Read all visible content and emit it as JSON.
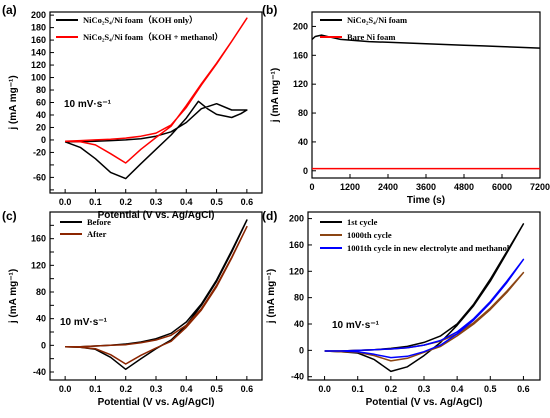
{
  "chart_data": [
    {
      "panel": "(a)",
      "type": "line",
      "xlabel": "Potential (V vs. Ag/AgCl)",
      "ylabel": "j (mA mg⁻¹)",
      "xlim": [
        -0.05,
        0.65
      ],
      "ylim": [
        -85,
        205
      ],
      "xticks": [
        0.0,
        0.1,
        0.2,
        0.3,
        0.4,
        0.5,
        0.6
      ],
      "xticklabels": [
        "0.0",
        "0.1",
        "0.2",
        "0.3",
        "0.4",
        "0.5",
        "0.6"
      ],
      "yticks": [
        -80,
        -60,
        -40,
        -20,
        0,
        20,
        40,
        60,
        80,
        100,
        120,
        140,
        160,
        180,
        200
      ],
      "yticklabels": [
        "",
        "-60",
        "",
        "-20",
        "0",
        "20",
        "40",
        "60",
        "80",
        "100",
        "120",
        "140",
        "160",
        "180",
        "200"
      ],
      "annotation": "10 mV·s⁻¹",
      "legend_position": "top-left",
      "series": [
        {
          "name": "NiCo₂S₄/Ni foam（KOH only）",
          "color": "#000000",
          "x": [
            0.0,
            0.05,
            0.1,
            0.15,
            0.2,
            0.25,
            0.3,
            0.35,
            0.4,
            0.45,
            0.5,
            0.55,
            0.6,
            0.58,
            0.55,
            0.5,
            0.47,
            0.44,
            0.4,
            0.35,
            0.3,
            0.25,
            0.2,
            0.15,
            0.1,
            0.05,
            0.0
          ],
          "y": [
            -3,
            -3,
            -2,
            -1,
            0,
            2,
            6,
            13,
            28,
            50,
            58,
            48,
            48,
            42,
            36,
            41,
            50,
            62,
            35,
            8,
            -15,
            -38,
            -62,
            -52,
            -30,
            -12,
            -3
          ]
        },
        {
          "name": "NiCo₂S₄/Ni foam（KOH + methanol）",
          "color": "#ff0000",
          "x": [
            0.0,
            0.05,
            0.1,
            0.15,
            0.2,
            0.25,
            0.3,
            0.35,
            0.4,
            0.45,
            0.5,
            0.55,
            0.6,
            0.55,
            0.5,
            0.45,
            0.4,
            0.35,
            0.3,
            0.25,
            0.2,
            0.15,
            0.1,
            0.05,
            0.0
          ],
          "y": [
            -2,
            -1,
            0,
            1,
            3,
            6,
            11,
            24,
            52,
            88,
            122,
            158,
            195,
            158,
            123,
            90,
            55,
            22,
            4,
            -15,
            -37,
            -22,
            -8,
            -3,
            -2
          ]
        }
      ]
    },
    {
      "panel": "(b)",
      "type": "line",
      "xlabel": "Time (s)",
      "ylabel": "j (mA mg⁻¹)",
      "xlim": [
        0,
        7200
      ],
      "ylim": [
        -10,
        220
      ],
      "xticks": [
        0,
        1200,
        2400,
        3600,
        4800,
        6000,
        7200
      ],
      "xticklabels": [
        "0",
        "1200",
        "2400",
        "3600",
        "4800",
        "6000",
        "7200"
      ],
      "yticks": [
        0,
        40,
        80,
        120,
        160,
        200
      ],
      "yticklabels": [
        "0",
        "40",
        "80",
        "120",
        "160",
        "200"
      ],
      "legend_position": "top-left",
      "series": [
        {
          "name": "NiCo₂S₄/Ni foam",
          "color": "#000000",
          "x": [
            0,
            100,
            300,
            600,
            900,
            1200,
            1800,
            2400,
            3000,
            3600,
            4200,
            4800,
            5400,
            6000,
            6600,
            7200
          ],
          "y": [
            182,
            186,
            188,
            185,
            182,
            181,
            179,
            178,
            177,
            176,
            175,
            174,
            173,
            172,
            171,
            170
          ]
        },
        {
          "name": "Bare Ni foam",
          "color": "#ff0000",
          "x": [
            0,
            7200
          ],
          "y": [
            3,
            3
          ]
        }
      ]
    },
    {
      "panel": "(c)",
      "type": "line",
      "xlabel": "Potential (V vs. Ag/AgCl)",
      "ylabel": "j (mA mg⁻¹)",
      "xlim": [
        -0.05,
        0.65
      ],
      "ylim": [
        -52,
        200
      ],
      "xticks": [
        0.0,
        0.1,
        0.2,
        0.3,
        0.4,
        0.5,
        0.6
      ],
      "xticklabels": [
        "0.0",
        "0.1",
        "0.2",
        "0.3",
        "0.4",
        "0.5",
        "0.6"
      ],
      "yticks": [
        -40,
        -20,
        0,
        20,
        40,
        60,
        80,
        100,
        120,
        140,
        160,
        180
      ],
      "yticklabels": [
        "-40",
        "",
        "0",
        "",
        "40",
        "",
        "80",
        "",
        "120",
        "",
        "160",
        ""
      ],
      "annotation": "10 mV·s⁻¹",
      "legend_position": "top-left",
      "series": [
        {
          "name": "Before",
          "color": "#000000",
          "x": [
            0.0,
            0.05,
            0.1,
            0.15,
            0.2,
            0.25,
            0.3,
            0.35,
            0.4,
            0.45,
            0.5,
            0.55,
            0.6,
            0.55,
            0.5,
            0.45,
            0.4,
            0.35,
            0.3,
            0.25,
            0.2,
            0.15,
            0.1,
            0.05,
            0.0
          ],
          "y": [
            -2,
            -2,
            -1,
            0,
            2,
            5,
            10,
            18,
            35,
            62,
            98,
            142,
            188,
            140,
            96,
            60,
            30,
            8,
            -5,
            -20,
            -36,
            -18,
            -6,
            -3,
            -2
          ]
        },
        {
          "name": "After",
          "color": "#8b2500",
          "x": [
            0.0,
            0.05,
            0.1,
            0.15,
            0.2,
            0.25,
            0.3,
            0.35,
            0.4,
            0.45,
            0.5,
            0.55,
            0.6,
            0.55,
            0.5,
            0.45,
            0.4,
            0.35,
            0.3,
            0.25,
            0.2,
            0.15,
            0.1,
            0.05,
            0.0
          ],
          "y": [
            -2,
            -2,
            -1,
            0,
            1,
            4,
            8,
            15,
            30,
            55,
            90,
            132,
            178,
            131,
            88,
            53,
            27,
            6,
            -4,
            -15,
            -28,
            -14,
            -5,
            -3,
            -2
          ]
        }
      ]
    },
    {
      "panel": "(d)",
      "type": "line",
      "xlabel": "Potential (V vs. Ag/AgCl)",
      "ylabel": "j (mA mg⁻¹)",
      "xlim": [
        -0.05,
        0.65
      ],
      "ylim": [
        -45,
        210
      ],
      "xticks": [
        0.0,
        0.1,
        0.2,
        0.3,
        0.4,
        0.5,
        0.6
      ],
      "xticklabels": [
        "0.0",
        "0.1",
        "0.2",
        "0.3",
        "0.4",
        "0.5",
        "0.6"
      ],
      "yticks": [
        -40,
        0,
        40,
        80,
        120,
        160,
        200
      ],
      "yticklabels": [
        "-40",
        "0",
        "40",
        "80",
        "120",
        "160",
        "200"
      ],
      "annotation": "10 mV·s⁻¹",
      "legend_position": "top-left",
      "series": [
        {
          "name": "1st cycle",
          "color": "#000000",
          "x": [
            0.0,
            0.05,
            0.1,
            0.15,
            0.2,
            0.25,
            0.3,
            0.35,
            0.4,
            0.45,
            0.5,
            0.55,
            0.6,
            0.55,
            0.5,
            0.45,
            0.4,
            0.35,
            0.3,
            0.25,
            0.2,
            0.15,
            0.1,
            0.05,
            0.0
          ],
          "y": [
            -1,
            -1,
            0,
            1,
            3,
            6,
            12,
            22,
            40,
            70,
            108,
            150,
            192,
            148,
            105,
            68,
            38,
            12,
            -8,
            -25,
            -32,
            -14,
            -4,
            -2,
            -1
          ]
        },
        {
          "name": "1000th cycle",
          "color": "#8b4513",
          "x": [
            0.0,
            0.05,
            0.1,
            0.15,
            0.2,
            0.25,
            0.3,
            0.35,
            0.4,
            0.45,
            0.5,
            0.55,
            0.6,
            0.55,
            0.5,
            0.45,
            0.4,
            0.35,
            0.3,
            0.25,
            0.2,
            0.15,
            0.1,
            0.05,
            0.0
          ],
          "y": [
            -1,
            -1,
            0,
            1,
            2,
            4,
            8,
            14,
            25,
            42,
            64,
            90,
            118,
            88,
            62,
            40,
            22,
            6,
            -3,
            -12,
            -16,
            -8,
            -3,
            -2,
            -1
          ]
        },
        {
          "name": "1001th cycle in new electrolyte and methanol",
          "color": "#0000ff",
          "x": [
            0.0,
            0.05,
            0.1,
            0.15,
            0.2,
            0.25,
            0.3,
            0.35,
            0.4,
            0.45,
            0.5,
            0.55,
            0.6,
            0.55,
            0.5,
            0.45,
            0.4,
            0.35,
            0.3,
            0.25,
            0.2,
            0.15,
            0.1,
            0.05,
            0.0
          ],
          "y": [
            -1,
            -1,
            0,
            1,
            2,
            4,
            8,
            15,
            28,
            48,
            74,
            105,
            138,
            103,
            72,
            46,
            25,
            8,
            -2,
            -9,
            -11,
            -6,
            -2,
            -1,
            -1
          ]
        }
      ]
    }
  ]
}
